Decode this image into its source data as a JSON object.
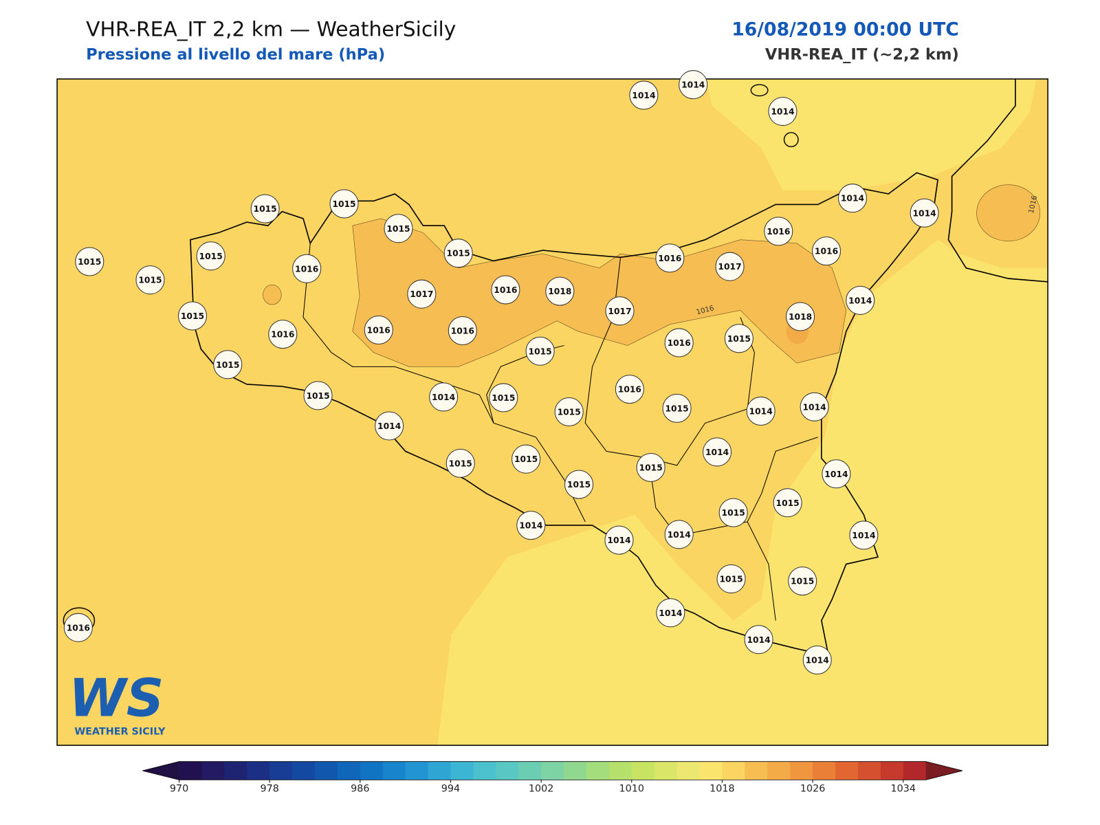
{
  "header": {
    "title": "VHR-REA_IT 2,2 km — WeatherSicily",
    "subtitle": "Pressione al livello del mare (hPa)",
    "datetime": "16/08/2019 00:00 UTC",
    "model": "VHR-REA_IT (~2,2 km)"
  },
  "map": {
    "stations": [
      1014,
      1014,
      1014,
      1015,
      1015,
      1015,
      1015,
      1015,
      1015,
      1015,
      1016,
      1017,
      1016,
      1018,
      1014,
      1014,
      1016,
      1016,
      1016,
      1017,
      1017,
      1014,
      1018,
      1015,
      1016,
      1016,
      1016,
      1015,
      1016,
      1015,
      1015,
      1015,
      1014,
      1015,
      1015,
      1016,
      1015,
      1014,
      1014,
      1014,
      1014,
      1015,
      1015,
      1015,
      1014,
      1015,
      1015,
      1015,
      1014,
      1014,
      1014,
      1014,
      1015,
      1015,
      1014,
      1014,
      1014,
      1016
    ],
    "contour_labels": [
      1016,
      1016
    ],
    "logo": {
      "mark": "WS",
      "name": "WEATHER SICILY"
    },
    "colorbar": {
      "lim": [
        970,
        1036
      ],
      "ticks": [
        970,
        978,
        986,
        994,
        1002,
        1010,
        1018,
        1026,
        1034
      ],
      "colors": [
        "#221150",
        "#231a63",
        "#1f2472",
        "#1b2f85",
        "#173d95",
        "#1449a2",
        "#1257ae",
        "#1066b8",
        "#1174c2",
        "#1784cb",
        "#2294d2",
        "#2fa5d4",
        "#3bb5d3",
        "#4ac1cd",
        "#5ac8c2",
        "#6bceb3",
        "#7dd3a3",
        "#90d88f",
        "#a3dd7c",
        "#b6e06c",
        "#c8e362",
        "#dae667",
        "#ebe770",
        "#fbe46e",
        "#fbd562",
        "#f6be52",
        "#f3ab47",
        "#ef963e",
        "#ea7f38",
        "#e26632",
        "#d4502e",
        "#c53a2c",
        "#b2272a"
      ],
      "under": "#201044",
      "over": "#7a1d22"
    }
  }
}
